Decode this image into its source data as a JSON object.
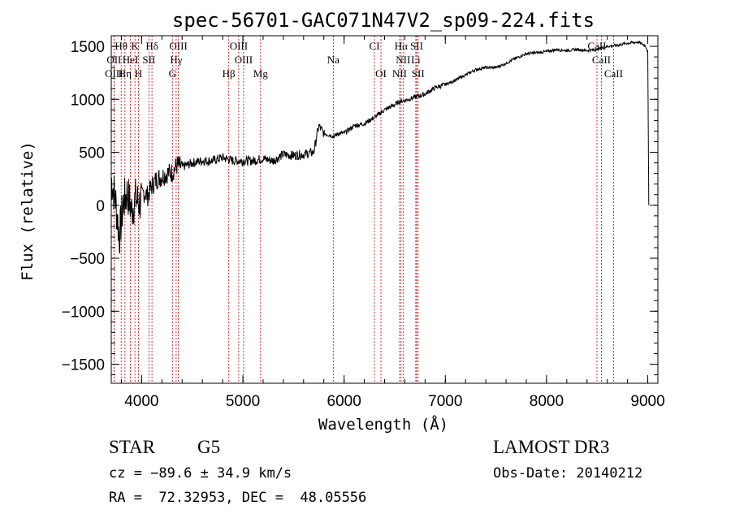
{
  "chart_data": {
    "type": "line",
    "title": "spec-56701-GAC071N47V2_sp09-224.fits",
    "xlabel": "Wavelength (Å)",
    "ylabel": "Flux (relative)",
    "xlim": [
      3700,
      9100
    ],
    "ylim": [
      -1680,
      1600
    ],
    "xticks": [
      4000,
      5000,
      6000,
      7000,
      8000,
      9000
    ],
    "yticks": [
      -1500,
      -1000,
      -500,
      0,
      500,
      1000,
      1500
    ],
    "xtick_labels": [
      "4000",
      "5000",
      "6000",
      "7000",
      "8000",
      "9000"
    ],
    "ytick_labels": [
      "−1500",
      "−1000",
      "−500",
      "0",
      "500",
      "1000",
      "1500"
    ],
    "series": [
      {
        "name": "flux",
        "x": [
          3700,
          3740,
          3780,
          3820,
          3860,
          3900,
          3940,
          3980,
          4020,
          4060,
          4100,
          4150,
          4200,
          4250,
          4300,
          4350,
          4400,
          4500,
          4600,
          4700,
          4800,
          4900,
          5000,
          5100,
          5200,
          5300,
          5400,
          5500,
          5600,
          5700,
          5750,
          5800,
          5900,
          5950,
          6000,
          6100,
          6200,
          6300,
          6400,
          6500,
          6550,
          6600,
          6700,
          6800,
          6900,
          7000,
          7100,
          7200,
          7300,
          7400,
          7500,
          7600,
          7700,
          7800,
          7900,
          8000,
          8100,
          8200,
          8300,
          8400,
          8500,
          8600,
          8700,
          8800,
          8900,
          8950,
          8980,
          9000,
          9010
        ],
        "y": [
          250,
          60,
          -300,
          30,
          120,
          -50,
          60,
          20,
          120,
          90,
          180,
          250,
          270,
          300,
          310,
          380,
          360,
          400,
          420,
          420,
          450,
          420,
          420,
          420,
          440,
          420,
          480,
          470,
          480,
          500,
          750,
          680,
          650,
          680,
          680,
          750,
          770,
          830,
          900,
          950,
          980,
          990,
          1020,
          1050,
          1110,
          1140,
          1180,
          1230,
          1280,
          1300,
          1300,
          1340,
          1390,
          1430,
          1440,
          1450,
          1470,
          1460,
          1470,
          1460,
          1470,
          1500,
          1510,
          1530,
          1540,
          1520,
          1500,
          1450,
          0
        ]
      }
    ],
    "spectral_lines": [
      {
        "label": "Hθ",
        "wavelength": 3798,
        "row": 1
      },
      {
        "label": "K",
        "wavelength": 3934,
        "row": 1
      },
      {
        "label": "Hδ",
        "wavelength": 4102,
        "row": 1
      },
      {
        "label": "OIII",
        "wavelength": 4363,
        "row": 1
      },
      {
        "label": "OIII",
        "wavelength": 4959,
        "row": 1
      },
      {
        "label": "CI",
        "wavelength": 6300,
        "row": 1
      },
      {
        "label": "Hα",
        "wavelength": 6563,
        "row": 1
      },
      {
        "label": "SII",
        "wavelength": 6717,
        "row": 1
      },
      {
        "label": "CaII",
        "wavelength": 8498,
        "row": 1
      },
      {
        "label": "OII",
        "wavelength": 3727,
        "row": 2
      },
      {
        "label": "HeI",
        "wavelength": 3889,
        "row": 2
      },
      {
        "label": "SII",
        "wavelength": 4072,
        "row": 2
      },
      {
        "label": "Hγ",
        "wavelength": 4341,
        "row": 2
      },
      {
        "label": "OIII",
        "wavelength": 5007,
        "row": 2
      },
      {
        "label": "Na",
        "wavelength": 5893,
        "row": 2
      },
      {
        "label": "NII",
        "wavelength": 6583,
        "row": 2
      },
      {
        "label": "Li",
        "wavelength": 6708,
        "row": 2
      },
      {
        "label": "CaII",
        "wavelength": 8542,
        "row": 2
      },
      {
        "label": "OIII",
        "wavelength": 3727,
        "row": 3
      },
      {
        "label": "Hη",
        "wavelength": 3835,
        "row": 3
      },
      {
        "label": "H",
        "wavelength": 3968,
        "row": 3
      },
      {
        "label": "G",
        "wavelength": 4304,
        "row": 3
      },
      {
        "label": "Hβ",
        "wavelength": 4861,
        "row": 3
      },
      {
        "label": "Mg",
        "wavelength": 5175,
        "row": 3
      },
      {
        "label": "OI",
        "wavelength": 6364,
        "row": 3
      },
      {
        "label": "NII",
        "wavelength": 6548,
        "row": 3
      },
      {
        "label": "SII",
        "wavelength": 6731,
        "row": 3
      },
      {
        "label": "CaII",
        "wavelength": 8662,
        "row": 3
      }
    ],
    "line_color": "#cc0000",
    "data_color": "#000000"
  },
  "info": {
    "class": "STAR",
    "subclass": "G5",
    "survey": "LAMOST DR3",
    "cz": "cz = −89.6 ± 34.9 km/s",
    "obs_date": "Obs-Date: 20140212",
    "coords": "RA =  72.32953, DEC =  48.05556"
  }
}
